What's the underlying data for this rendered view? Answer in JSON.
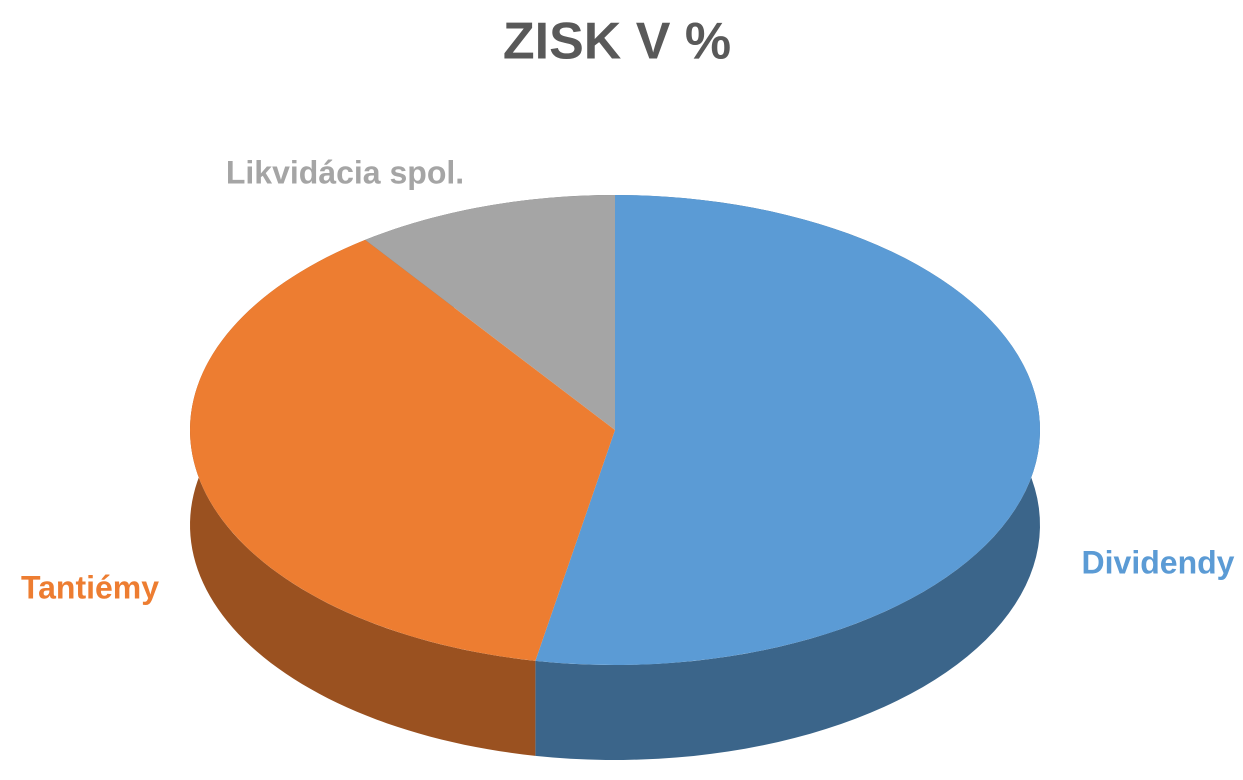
{
  "chart_data": {
    "type": "pie",
    "title": "ZISK V %",
    "categories": [
      "Dividendy",
      "Tantiémy",
      "Likvidácia  spol."
    ],
    "values": [
      53,
      37,
      10
    ],
    "colors": [
      "#5b9bd5",
      "#ed7d31",
      "#a5a5a5"
    ]
  }
}
